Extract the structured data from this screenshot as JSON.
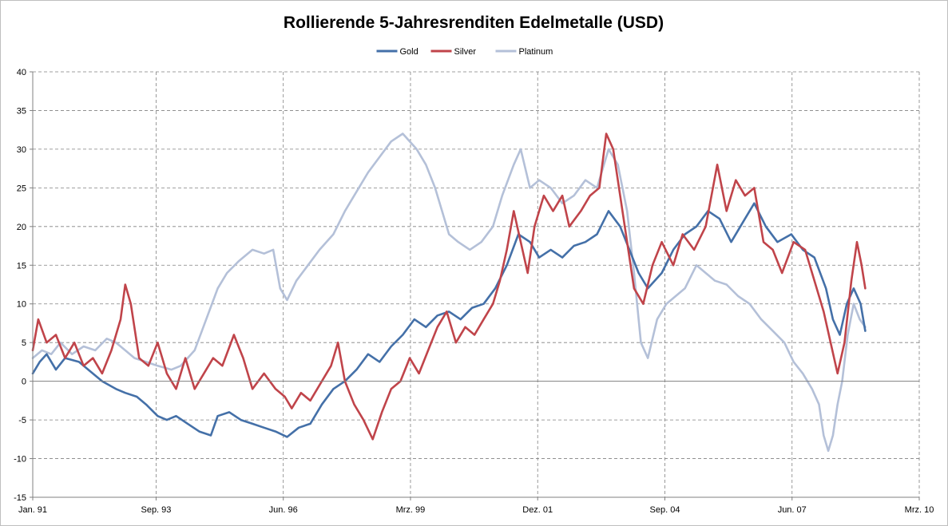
{
  "chart_data": {
    "type": "line",
    "title": "Rollierende 5-Jahresrenditen Edelmetalle (USD)",
    "xlabel": "",
    "ylabel": "",
    "ylim": [
      -15,
      40
    ],
    "y_ticks": [
      -15,
      -10,
      -5,
      0,
      5,
      10,
      15,
      20,
      25,
      30,
      35,
      40
    ],
    "y_tick_labels": [
      "-15",
      "-10",
      "-5",
      "0",
      "5",
      "10",
      "15",
      "20",
      "25",
      "30",
      "35",
      "40"
    ],
    "x_domain": [
      1991.0,
      2010.167
    ],
    "x_ticks": [
      1991.0,
      1993.667,
      1996.417,
      1999.167,
      2001.917,
      2004.667,
      2007.417,
      2010.167
    ],
    "x_tick_labels": [
      "Jan. 91",
      "Sep. 93",
      "Jun. 96",
      "Mrz. 99",
      "Dez. 01",
      "Sep. 04",
      "Jun. 07",
      "Mrz. 10"
    ],
    "grid": true,
    "legend_position": "top-center",
    "legend": [
      "Gold",
      "Silver",
      "Platinum"
    ],
    "series": [
      {
        "name": "Gold",
        "color": "#4470a8",
        "points": [
          [
            1991.0,
            1
          ],
          [
            1991.15,
            2.5
          ],
          [
            1991.3,
            3.5
          ],
          [
            1991.5,
            1.5
          ],
          [
            1991.7,
            3
          ],
          [
            1992.0,
            2.5
          ],
          [
            1992.2,
            1.5
          ],
          [
            1992.5,
            0
          ],
          [
            1992.8,
            -1
          ],
          [
            1993.0,
            -1.5
          ],
          [
            1993.25,
            -2
          ],
          [
            1993.45,
            -3
          ],
          [
            1993.7,
            -4.5
          ],
          [
            1993.9,
            -5
          ],
          [
            1994.1,
            -4.5
          ],
          [
            1994.35,
            -5.5
          ],
          [
            1994.6,
            -6.5
          ],
          [
            1994.85,
            -7
          ],
          [
            1995.0,
            -4.5
          ],
          [
            1995.25,
            -4
          ],
          [
            1995.5,
            -5
          ],
          [
            1995.75,
            -5.5
          ],
          [
            1996.0,
            -6
          ],
          [
            1996.25,
            -6.5
          ],
          [
            1996.5,
            -7.2
          ],
          [
            1996.75,
            -6
          ],
          [
            1997.0,
            -5.5
          ],
          [
            1997.25,
            -3
          ],
          [
            1997.5,
            -1
          ],
          [
            1997.75,
            0
          ],
          [
            1998.0,
            1.5
          ],
          [
            1998.25,
            3.5
          ],
          [
            1998.5,
            2.5
          ],
          [
            1998.75,
            4.5
          ],
          [
            1999.0,
            6
          ],
          [
            1999.25,
            8
          ],
          [
            1999.5,
            7
          ],
          [
            1999.75,
            8.5
          ],
          [
            2000.0,
            9
          ],
          [
            2000.25,
            8
          ],
          [
            2000.5,
            9.5
          ],
          [
            2000.75,
            10
          ],
          [
            2001.0,
            12
          ],
          [
            2001.25,
            15
          ],
          [
            2001.5,
            19
          ],
          [
            2001.75,
            18
          ],
          [
            2001.95,
            16
          ],
          [
            2002.2,
            17
          ],
          [
            2002.45,
            16
          ],
          [
            2002.7,
            17.5
          ],
          [
            2002.95,
            18
          ],
          [
            2003.2,
            19
          ],
          [
            2003.45,
            22
          ],
          [
            2003.7,
            20
          ],
          [
            2003.9,
            17
          ],
          [
            2004.1,
            14
          ],
          [
            2004.3,
            12
          ],
          [
            2004.6,
            14
          ],
          [
            2004.85,
            17
          ],
          [
            2005.1,
            19
          ],
          [
            2005.35,
            20
          ],
          [
            2005.6,
            22
          ],
          [
            2005.85,
            21
          ],
          [
            2006.1,
            18
          ],
          [
            2006.4,
            21
          ],
          [
            2006.6,
            23
          ],
          [
            2006.85,
            20
          ],
          [
            2007.1,
            18
          ],
          [
            2007.4,
            19
          ],
          [
            2007.65,
            17
          ],
          [
            2007.9,
            16
          ],
          [
            2008.15,
            12
          ],
          [
            2008.3,
            8
          ],
          [
            2008.45,
            6
          ],
          [
            2008.6,
            10
          ],
          [
            2008.75,
            12
          ],
          [
            2008.9,
            10
          ],
          [
            2009.0,
            6.5
          ]
        ]
      },
      {
        "name": "Silver",
        "color": "#c0444a",
        "points": [
          [
            1991.0,
            4
          ],
          [
            1991.12,
            8
          ],
          [
            1991.3,
            5
          ],
          [
            1991.5,
            6
          ],
          [
            1991.7,
            3
          ],
          [
            1991.9,
            5
          ],
          [
            1992.1,
            2
          ],
          [
            1992.3,
            3
          ],
          [
            1992.5,
            1
          ],
          [
            1992.7,
            4
          ],
          [
            1992.9,
            8
          ],
          [
            1993.0,
            12.5
          ],
          [
            1993.12,
            10
          ],
          [
            1993.3,
            3
          ],
          [
            1993.5,
            2
          ],
          [
            1993.7,
            5
          ],
          [
            1993.9,
            1
          ],
          [
            1994.1,
            -1
          ],
          [
            1994.3,
            3
          ],
          [
            1994.5,
            -1
          ],
          [
            1994.7,
            1
          ],
          [
            1994.9,
            3
          ],
          [
            1995.1,
            2
          ],
          [
            1995.35,
            6
          ],
          [
            1995.55,
            3
          ],
          [
            1995.75,
            -1
          ],
          [
            1996.0,
            1
          ],
          [
            1996.25,
            -1
          ],
          [
            1996.45,
            -2
          ],
          [
            1996.6,
            -3.5
          ],
          [
            1996.8,
            -1.5
          ],
          [
            1997.0,
            -2.5
          ],
          [
            1997.25,
            0
          ],
          [
            1997.45,
            2
          ],
          [
            1997.6,
            5
          ],
          [
            1997.75,
            0
          ],
          [
            1997.95,
            -3
          ],
          [
            1998.15,
            -5
          ],
          [
            1998.35,
            -7.5
          ],
          [
            1998.55,
            -4
          ],
          [
            1998.75,
            -1
          ],
          [
            1998.95,
            0
          ],
          [
            1999.15,
            3
          ],
          [
            1999.35,
            1
          ],
          [
            1999.55,
            4
          ],
          [
            1999.75,
            7
          ],
          [
            1999.95,
            9
          ],
          [
            2000.15,
            5
          ],
          [
            2000.35,
            7
          ],
          [
            2000.55,
            6
          ],
          [
            2000.75,
            8
          ],
          [
            2000.95,
            10
          ],
          [
            2001.1,
            13
          ],
          [
            2001.25,
            17
          ],
          [
            2001.4,
            22
          ],
          [
            2001.55,
            18
          ],
          [
            2001.7,
            14
          ],
          [
            2001.85,
            20
          ],
          [
            2002.05,
            24
          ],
          [
            2002.25,
            22
          ],
          [
            2002.45,
            24
          ],
          [
            2002.6,
            20
          ],
          [
            2002.85,
            22
          ],
          [
            2003.05,
            24
          ],
          [
            2003.25,
            25
          ],
          [
            2003.4,
            32
          ],
          [
            2003.55,
            30
          ],
          [
            2003.7,
            24
          ],
          [
            2003.85,
            18
          ],
          [
            2004.0,
            12
          ],
          [
            2004.2,
            10
          ],
          [
            2004.4,
            15
          ],
          [
            2004.6,
            18
          ],
          [
            2004.85,
            15
          ],
          [
            2005.05,
            19
          ],
          [
            2005.3,
            17
          ],
          [
            2005.55,
            20
          ],
          [
            2005.8,
            28
          ],
          [
            2006.0,
            22
          ],
          [
            2006.2,
            26
          ],
          [
            2006.4,
            24
          ],
          [
            2006.6,
            25
          ],
          [
            2006.8,
            18
          ],
          [
            2007.0,
            17
          ],
          [
            2007.2,
            14
          ],
          [
            2007.45,
            18
          ],
          [
            2007.7,
            17
          ],
          [
            2007.95,
            12
          ],
          [
            2008.1,
            9
          ],
          [
            2008.25,
            5
          ],
          [
            2008.4,
            1
          ],
          [
            2008.55,
            5
          ],
          [
            2008.7,
            13
          ],
          [
            2008.82,
            18
          ],
          [
            2008.92,
            15
          ],
          [
            2009.0,
            12
          ]
        ]
      },
      {
        "name": "Platinum",
        "color": "#b4c0d8",
        "points": [
          [
            1991.0,
            3
          ],
          [
            1991.2,
            4
          ],
          [
            1991.4,
            3.5
          ],
          [
            1991.6,
            5
          ],
          [
            1991.85,
            3.5
          ],
          [
            1992.1,
            4.5
          ],
          [
            1992.35,
            4
          ],
          [
            1992.6,
            5.5
          ],
          [
            1992.8,
            5
          ],
          [
            1993.0,
            4
          ],
          [
            1993.2,
            3
          ],
          [
            1993.45,
            2.5
          ],
          [
            1993.7,
            2
          ],
          [
            1994.0,
            1.5
          ],
          [
            1994.2,
            2
          ],
          [
            1994.5,
            4
          ],
          [
            1994.75,
            8
          ],
          [
            1995.0,
            12
          ],
          [
            1995.2,
            14
          ],
          [
            1995.45,
            15.5
          ],
          [
            1995.75,
            17
          ],
          [
            1996.0,
            16.5
          ],
          [
            1996.2,
            17
          ],
          [
            1996.35,
            12
          ],
          [
            1996.5,
            10.5
          ],
          [
            1996.7,
            13
          ],
          [
            1996.95,
            15
          ],
          [
            1997.2,
            17
          ],
          [
            1997.5,
            19
          ],
          [
            1997.75,
            22
          ],
          [
            1998.0,
            24.5
          ],
          [
            1998.25,
            27
          ],
          [
            1998.5,
            29
          ],
          [
            1998.75,
            31
          ],
          [
            1999.0,
            32
          ],
          [
            1999.3,
            30
          ],
          [
            1999.5,
            28
          ],
          [
            1999.7,
            25
          ],
          [
            1999.85,
            22
          ],
          [
            2000.0,
            19
          ],
          [
            2000.2,
            18
          ],
          [
            2000.45,
            17
          ],
          [
            2000.7,
            18
          ],
          [
            2000.95,
            20
          ],
          [
            2001.15,
            24
          ],
          [
            2001.4,
            28
          ],
          [
            2001.55,
            30
          ],
          [
            2001.75,
            25
          ],
          [
            2001.95,
            26
          ],
          [
            2002.2,
            25
          ],
          [
            2002.45,
            23
          ],
          [
            2002.7,
            24
          ],
          [
            2002.95,
            26
          ],
          [
            2003.2,
            25
          ],
          [
            2003.45,
            30
          ],
          [
            2003.65,
            28
          ],
          [
            2003.85,
            22
          ],
          [
            2004.0,
            14
          ],
          [
            2004.15,
            5
          ],
          [
            2004.3,
            3
          ],
          [
            2004.5,
            8
          ],
          [
            2004.7,
            10
          ],
          [
            2004.9,
            11
          ],
          [
            2005.1,
            12
          ],
          [
            2005.35,
            15
          ],
          [
            2005.55,
            14
          ],
          [
            2005.75,
            13
          ],
          [
            2006.0,
            12.5
          ],
          [
            2006.25,
            11
          ],
          [
            2006.5,
            10
          ],
          [
            2006.75,
            8
          ],
          [
            2007.0,
            6.5
          ],
          [
            2007.25,
            5
          ],
          [
            2007.45,
            2.5
          ],
          [
            2007.65,
            1
          ],
          [
            2007.85,
            -1
          ],
          [
            2008.0,
            -3
          ],
          [
            2008.1,
            -7
          ],
          [
            2008.2,
            -9
          ],
          [
            2008.3,
            -7
          ],
          [
            2008.4,
            -3
          ],
          [
            2008.5,
            0
          ],
          [
            2008.62,
            6
          ],
          [
            2008.75,
            10
          ],
          [
            2008.88,
            8
          ],
          [
            2009.0,
            7
          ]
        ]
      }
    ]
  }
}
